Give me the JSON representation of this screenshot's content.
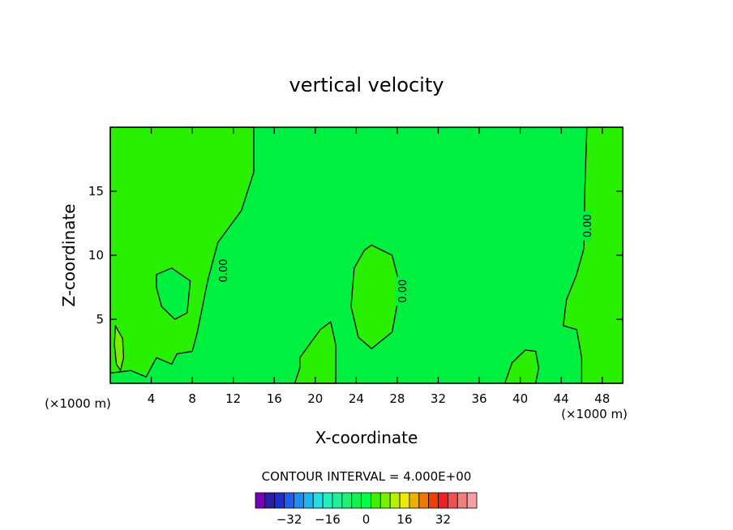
{
  "chart_data": {
    "type": "contour",
    "title": "vertical velocity",
    "xlabel": "X-coordinate",
    "ylabel": "Z-coordinate",
    "x_unit_left": "(×1000 m)",
    "x_unit_right": "(×1000 m)",
    "xlim": [
      0,
      50
    ],
    "ylim": [
      0,
      20
    ],
    "x_ticks": [
      4,
      8,
      12,
      16,
      20,
      24,
      28,
      32,
      36,
      40,
      44,
      48
    ],
    "y_ticks": [
      5,
      10,
      15
    ],
    "contour_interval_text": "CONTOUR INTERVAL = 4.000E+00",
    "contour_labels": [
      {
        "text": "0.00",
        "x": 11,
        "y": 8.8
      },
      {
        "text": "0.00",
        "x": 28.5,
        "y": 7.2
      },
      {
        "text": "0.00",
        "x": 46.5,
        "y": 12.3
      }
    ],
    "colorbar": {
      "colors": [
        "#7a00b8",
        "#2a1fa8",
        "#1e2fd0",
        "#1f5ef0",
        "#1e8ef2",
        "#1fb6f0",
        "#20e0e6",
        "#20f0c0",
        "#1ff09a",
        "#1ef078",
        "#14f050",
        "#00ff48",
        "#40f000",
        "#78f000",
        "#b8f000",
        "#f0e800",
        "#f0b000",
        "#f07800",
        "#f04000",
        "#f02020",
        "#f05050",
        "#f08080",
        "#f4a0a0"
      ],
      "tick_labels": [
        "−32",
        "−16",
        "0",
        "16",
        "32"
      ],
      "tick_values": [
        -32,
        -16,
        0,
        16,
        32
      ]
    },
    "field_colors": {
      "zero_band": "#00f040",
      "positive_band": "#29ef00",
      "higher_band": "#7aee00"
    },
    "regions": [
      {
        "level": "positive",
        "points": [
          [
            0,
            20
          ],
          [
            14,
            20
          ],
          [
            14,
            16.5
          ],
          [
            12.8,
            13.5
          ],
          [
            10.5,
            11
          ],
          [
            9.5,
            8
          ],
          [
            8.5,
            4
          ],
          [
            8,
            2.5
          ],
          [
            6.5,
            2.3
          ],
          [
            6,
            1.5
          ],
          [
            4.5,
            2
          ],
          [
            3.5,
            0.5
          ],
          [
            2,
            1
          ],
          [
            0,
            0.8
          ]
        ]
      },
      {
        "level": "zero",
        "points": [
          [
            4.5,
            8.5
          ],
          [
            6,
            9
          ],
          [
            7.8,
            8
          ],
          [
            7.5,
            5.5
          ],
          [
            6.3,
            5
          ],
          [
            5,
            6
          ],
          [
            4.5,
            7.5
          ]
        ]
      },
      {
        "level": "positive",
        "points": [
          [
            25.5,
            10.8
          ],
          [
            27.5,
            10
          ],
          [
            28.3,
            7.5
          ],
          [
            27.5,
            4
          ],
          [
            25.5,
            2.7
          ],
          [
            24.2,
            3.6
          ],
          [
            23.5,
            6
          ],
          [
            23.8,
            9
          ],
          [
            24.8,
            10.4
          ]
        ]
      },
      {
        "level": "positive",
        "points": [
          [
            18.5,
            2
          ],
          [
            20.5,
            4.2
          ],
          [
            21.5,
            4.8
          ],
          [
            22,
            3
          ],
          [
            22,
            0
          ],
          [
            18,
            0
          ],
          [
            18.5,
            1.2
          ]
        ]
      },
      {
        "level": "positive",
        "points": [
          [
            50,
            20
          ],
          [
            46.5,
            20
          ],
          [
            46.3,
            15
          ],
          [
            46.2,
            10.5
          ],
          [
            45.5,
            8.5
          ],
          [
            44.5,
            6.5
          ],
          [
            44.2,
            4.5
          ],
          [
            45.5,
            4.2
          ],
          [
            46,
            2
          ],
          [
            46,
            0
          ],
          [
            50,
            0
          ]
        ]
      },
      {
        "level": "positive",
        "points": [
          [
            38.5,
            0
          ],
          [
            39.2,
            1.6
          ],
          [
            40.5,
            2.6
          ],
          [
            41.5,
            2.5
          ],
          [
            41.8,
            1.2
          ],
          [
            41.5,
            0
          ]
        ]
      }
    ],
    "filled_small_regions": [
      {
        "level": "higher",
        "points": [
          [
            0.5,
            4.5
          ],
          [
            1.2,
            3.5
          ],
          [
            1.3,
            2
          ],
          [
            1,
            1
          ],
          [
            0.6,
            1.5
          ],
          [
            0.4,
            3
          ]
        ]
      }
    ]
  }
}
